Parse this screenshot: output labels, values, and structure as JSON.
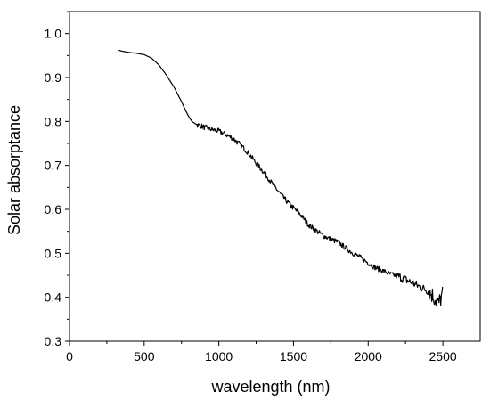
{
  "chart_data": {
    "type": "line",
    "title": "",
    "xlabel": "wavelength (nm)",
    "ylabel": "Solar absorptance",
    "xlim": [
      0,
      2750
    ],
    "ylim": [
      0.3,
      1.05
    ],
    "xticks": [
      0,
      500,
      1000,
      1500,
      2000,
      2500
    ],
    "yticks": [
      0.3,
      0.4,
      0.5,
      0.6,
      0.7,
      0.8,
      0.9,
      1.0
    ],
    "xtick_labels": [
      "0",
      "500",
      "1000",
      "1500",
      "2000",
      "2500"
    ],
    "ytick_labels": [
      "0.3",
      "0.4",
      "0.5",
      "0.6",
      "0.7",
      "0.8",
      "0.9",
      "1.0"
    ],
    "grid": false,
    "legend": false,
    "line_color": "#000000",
    "series": [
      {
        "x": [
          330,
          350,
          400,
          450,
          500,
          550,
          600,
          650,
          700,
          750,
          780,
          800,
          820,
          850,
          880,
          900,
          950,
          1000,
          1050,
          1100,
          1150,
          1200,
          1250,
          1300,
          1350,
          1400,
          1450,
          1500,
          1550,
          1600,
          1650,
          1700,
          1750,
          1800,
          1850,
          1900,
          1950,
          2000,
          2050,
          2100,
          2150,
          2200,
          2250,
          2300,
          2350,
          2400,
          2430,
          2450,
          2470,
          2490,
          2500
        ],
        "y": [
          0.962,
          0.96,
          0.957,
          0.955,
          0.952,
          0.944,
          0.928,
          0.905,
          0.878,
          0.845,
          0.823,
          0.81,
          0.8,
          0.793,
          0.79,
          0.787,
          0.782,
          0.778,
          0.77,
          0.76,
          0.745,
          0.728,
          0.705,
          0.685,
          0.662,
          0.64,
          0.62,
          0.603,
          0.587,
          0.565,
          0.552,
          0.54,
          0.532,
          0.525,
          0.512,
          0.5,
          0.49,
          0.478,
          0.467,
          0.46,
          0.452,
          0.448,
          0.44,
          0.432,
          0.423,
          0.415,
          0.405,
          0.395,
          0.385,
          0.4,
          0.41
        ]
      }
    ]
  }
}
